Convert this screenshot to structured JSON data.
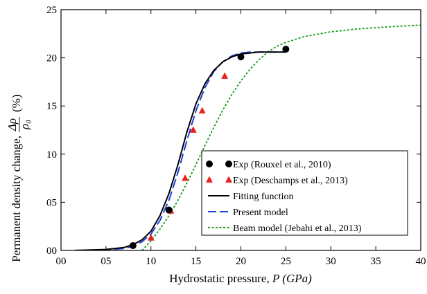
{
  "chart_data": {
    "type": "line",
    "xlabel": "Hydrostatic pressure, P (GPa)",
    "xlabel_parts": {
      "text": "Hydrostatic pressure, ",
      "math": "P (GPa)"
    },
    "ylabel": "Permanent density change, Δρ/ρ₀ (%)",
    "ylabel_parts": {
      "text": "Permanent density change, ",
      "num": "Δρ",
      "den": "ρ₀",
      "unit": "(%)"
    },
    "xlim": [
      0,
      40
    ],
    "ylim": [
      0,
      25
    ],
    "x_tick_values": [
      0,
      5,
      10,
      15,
      20,
      25,
      30,
      35,
      40
    ],
    "x_tick_labels": [
      "00",
      "05",
      "10",
      "15",
      "20",
      "25",
      "30",
      "35",
      "40"
    ],
    "y_tick_values": [
      0,
      5,
      10,
      15,
      20,
      25
    ],
    "y_tick_labels": [
      "00",
      "05",
      "10",
      "15",
      "20",
      "25"
    ],
    "grid": false,
    "legend_position": "bottom-right",
    "series": [
      {
        "name": "Exp (Rouxel et al., 2010)",
        "kind": "scatter",
        "marker": "circle",
        "color": "#000000",
        "x": [
          8.0,
          12.0,
          20.0,
          25.0
        ],
        "y": [
          0.5,
          4.2,
          20.1,
          20.9
        ]
      },
      {
        "name": "Exp (Deschamps et al., 2013)",
        "kind": "scatter",
        "marker": "triangle",
        "color": "#e8201e",
        "x": [
          10.0,
          12.2,
          13.8,
          14.7,
          15.7,
          18.2
        ],
        "y": [
          1.3,
          4.1,
          7.5,
          12.5,
          14.5,
          18.1
        ]
      },
      {
        "name": "Fitting function",
        "kind": "line",
        "dash": "solid",
        "color": "#000000",
        "x": [
          1.5,
          5,
          7,
          8,
          9,
          10,
          11,
          12,
          13,
          14,
          15,
          16,
          17,
          18,
          19,
          20,
          21,
          22,
          23,
          24,
          25
        ],
        "y": [
          0.0,
          0.1,
          0.3,
          0.6,
          1.1,
          2.0,
          3.6,
          5.9,
          8.9,
          12.3,
          15.2,
          17.3,
          18.7,
          19.6,
          20.1,
          20.4,
          20.5,
          20.6,
          20.6,
          20.6,
          20.6
        ]
      },
      {
        "name": "Present model",
        "kind": "line",
        "dash": "dashed",
        "color": "#1f3fd6",
        "x": [
          1.5,
          5,
          7,
          8,
          9,
          10,
          11,
          12,
          13,
          14,
          15,
          16,
          17,
          18,
          19,
          20,
          21,
          22,
          23,
          24,
          25
        ],
        "y": [
          0.0,
          0.05,
          0.2,
          0.45,
          0.9,
          1.7,
          3.1,
          5.2,
          8.1,
          11.4,
          14.5,
          16.9,
          18.6,
          19.6,
          20.2,
          20.5,
          20.6,
          20.6,
          20.6,
          20.6,
          20.6
        ]
      },
      {
        "name": "Beam model (Jebahi et al., 2013)",
        "kind": "line",
        "dash": "dotted",
        "color": "#129b1a",
        "x": [
          9,
          10,
          11,
          12,
          13,
          14,
          15,
          16,
          17,
          18,
          19,
          20,
          21,
          22,
          23,
          24,
          25,
          27,
          30,
          33,
          36,
          38,
          40
        ],
        "y": [
          0.0,
          1.0,
          2.2,
          3.6,
          5.2,
          7.0,
          8.9,
          10.9,
          12.8,
          14.6,
          16.2,
          17.6,
          18.8,
          19.8,
          20.6,
          21.2,
          21.6,
          22.2,
          22.7,
          23.0,
          23.2,
          23.3,
          23.4
        ]
      }
    ]
  }
}
